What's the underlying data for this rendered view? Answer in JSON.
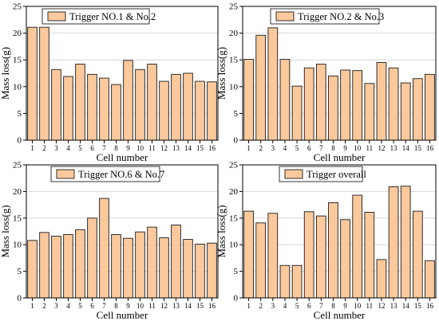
{
  "colors": {
    "bar_fill": "#fbc99c",
    "bar_stroke": "#1a1a1a",
    "grid": "#d0d0d0",
    "axis": "#000000"
  },
  "chart_data": [
    {
      "type": "bar",
      "legend": "Trigger NO.1 & No.2",
      "legend_position": "top-left",
      "xlabel": "Cell number",
      "ylabel": "Mass loss(g)",
      "ylim": [
        0,
        25
      ],
      "yticks": [
        0,
        5,
        10,
        15,
        20,
        25
      ],
      "grid": true,
      "categories": [
        "1",
        "2",
        "3",
        "4",
        "5",
        "6",
        "7",
        "8",
        "9",
        "10",
        "11",
        "12",
        "13",
        "14",
        "15",
        "16"
      ],
      "values": [
        21.1,
        21.1,
        13.2,
        11.9,
        14.2,
        12.3,
        11.6,
        10.4,
        14.9,
        13.2,
        14.2,
        11.0,
        12.3,
        12.5,
        11.0,
        10.9
      ]
    },
    {
      "type": "bar",
      "legend": "Trigger NO.2 & No.3",
      "legend_position": "top-right",
      "xlabel": "Cell number",
      "ylabel": "Mass loss(g)",
      "ylim": [
        0,
        25
      ],
      "yticks": [
        0,
        5,
        10,
        15,
        20,
        25
      ],
      "grid": true,
      "categories": [
        "1",
        "2",
        "3",
        "4",
        "5",
        "6",
        "7",
        "8",
        "9",
        "10",
        "11",
        "12",
        "13",
        "14",
        "15",
        "16"
      ],
      "values": [
        15.1,
        19.6,
        21.0,
        15.1,
        10.1,
        13.5,
        14.2,
        12.0,
        13.1,
        13.0,
        10.6,
        14.5,
        13.5,
        10.7,
        11.5,
        12.3
      ]
    },
    {
      "type": "bar",
      "legend": "Trigger NO.6 & No.7",
      "legend_position": "top-left",
      "xlabel": "Cell number",
      "ylabel": "Mass loss(g)",
      "ylim": [
        0,
        25
      ],
      "yticks": [
        0,
        5,
        10,
        15,
        20,
        25
      ],
      "grid": true,
      "categories": [
        "1",
        "2",
        "3",
        "4",
        "5",
        "6",
        "7",
        "8",
        "9",
        "10",
        "11",
        "12",
        "13",
        "14",
        "15",
        "16"
      ],
      "values": [
        10.8,
        12.3,
        11.6,
        11.9,
        12.8,
        15.0,
        18.7,
        11.9,
        11.2,
        12.4,
        13.3,
        11.3,
        13.7,
        11.0,
        10.1,
        10.3
      ]
    },
    {
      "type": "bar",
      "legend": "Trigger overall",
      "legend_position": "top-center",
      "xlabel": "Cell number",
      "ylabel": "Mass loss(g)",
      "ylim": [
        0,
        25
      ],
      "yticks": [
        0,
        5,
        10,
        15,
        20,
        25
      ],
      "grid": true,
      "categories": [
        "1",
        "2",
        "3",
        "4",
        "5",
        "6",
        "7",
        "8",
        "9",
        "10",
        "11",
        "12",
        "13",
        "14",
        "15",
        "16"
      ],
      "values": [
        16.3,
        14.1,
        15.9,
        6.1,
        6.1,
        16.2,
        15.4,
        17.9,
        14.7,
        19.3,
        16.1,
        7.2,
        20.9,
        21.0,
        16.3,
        7.0
      ]
    }
  ]
}
